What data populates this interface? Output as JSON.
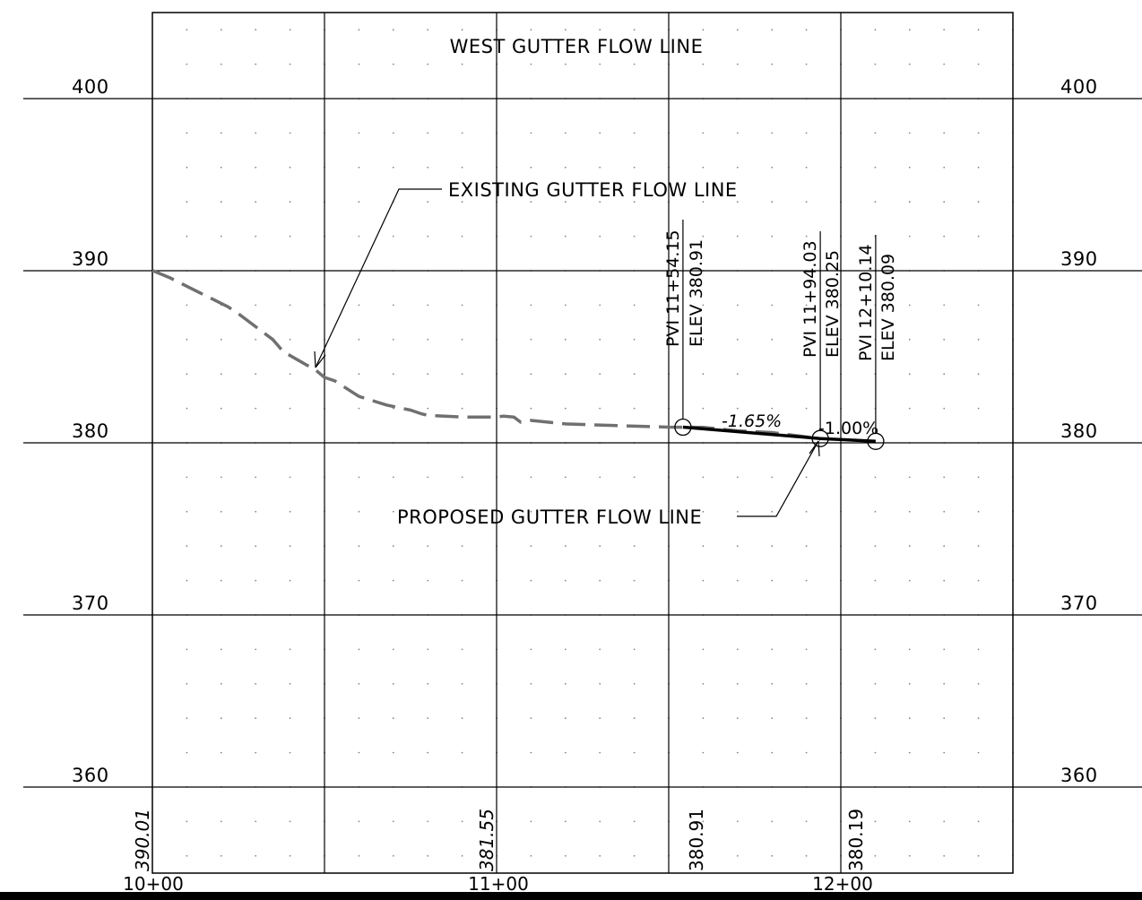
{
  "title": "WEST GUTTER FLOW LINE",
  "labels": {
    "existing": "EXISTING GUTTER FLOW LINE",
    "proposed": "PROPOSED GUTTER FLOW LINE"
  },
  "elevation_axis": {
    "ticks": [
      "400",
      "390",
      "380",
      "370",
      "360"
    ]
  },
  "station_axis": {
    "ticks": [
      "10+00",
      "11+00",
      "12+00"
    ]
  },
  "existing_elev_labels": [
    {
      "text": "390.01",
      "italic": true
    },
    {
      "text": "381.55",
      "italic": true
    },
    {
      "text": "380.91",
      "italic": false
    },
    {
      "text": "380.19",
      "italic": false
    }
  ],
  "grades": [
    "-1.65%",
    "-1.00%"
  ],
  "pvis": [
    {
      "station_text": "PVI 11+54.15",
      "elev_text": "ELEV 380.91"
    },
    {
      "station_text": "PVI 11+94.03",
      "elev_text": "ELEV 380.25"
    },
    {
      "station_text": "PVI 12+10.14",
      "elev_text": "ELEV 380.09"
    }
  ],
  "colors": {
    "existing_line": "#707070",
    "proposed_line": "#000000",
    "grid": "#000000"
  },
  "chart_data": {
    "type": "line",
    "title": "WEST GUTTER FLOW LINE",
    "xlabel": "",
    "ylabel": "",
    "xlim": [
      "10+00",
      "12+50"
    ],
    "ylim": [
      355,
      405
    ],
    "grid": true,
    "series": [
      {
        "name": "EXISTING GUTTER FLOW LINE",
        "style": "dashed",
        "x": [
          1000,
          1005,
          1015,
          1022,
          1025,
          1035,
          1038,
          1045,
          1047,
          1050,
          1053,
          1060,
          1068,
          1075,
          1078,
          1080,
          1090,
          1100,
          1102,
          1105,
          1107,
          1110,
          1120,
          1135,
          1150,
          1160,
          1170,
          1180,
          1190,
          1194
        ],
        "y": [
          390.01,
          389.6,
          388.6,
          387.9,
          387.5,
          386.0,
          385.3,
          384.5,
          384.3,
          383.8,
          383.6,
          382.7,
          382.2,
          381.9,
          381.7,
          381.6,
          381.5,
          381.5,
          381.55,
          381.5,
          381.2,
          381.3,
          381.1,
          381.0,
          380.91,
          380.9,
          380.7,
          380.6,
          380.35,
          380.19
        ]
      },
      {
        "name": "PROPOSED GUTTER FLOW LINE",
        "style": "solid",
        "x": [
          1154.15,
          1194.03,
          1210.14
        ],
        "y": [
          380.91,
          380.25,
          380.09
        ]
      }
    ]
  }
}
